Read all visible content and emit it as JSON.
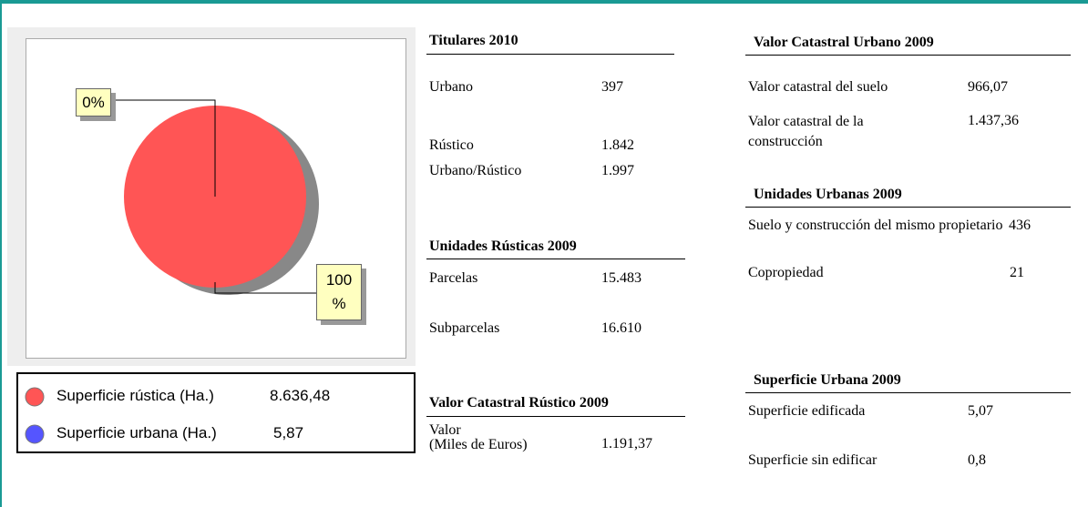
{
  "chart_data": {
    "type": "pie",
    "categories": [
      "Superficie rústica (Ha.)",
      "Superficie urbana (Ha.)"
    ],
    "values": [
      8636.48,
      5.87
    ],
    "value_labels": [
      "8.636,48",
      "5,87"
    ],
    "percent_labels": [
      "100 %",
      "0%"
    ],
    "colors": [
      "#ff5555",
      "#5555ff"
    ]
  },
  "tables": [
    {
      "title": "Titulares 2010",
      "rows": [
        [
          "Urbano",
          "397"
        ],
        [
          "Rústico",
          "1.842"
        ],
        [
          "Urbano/Rústico",
          "1.997"
        ]
      ]
    },
    {
      "title": "Unidades Rústicas 2009",
      "rows": [
        [
          "Parcelas",
          "15.483"
        ],
        [
          "Subparcelas",
          "16.610"
        ]
      ]
    },
    {
      "title": "Valor Catastral Rústico 2009",
      "rows": [
        [
          "Valor\n(Miles de Euros)",
          "1.191,37"
        ]
      ]
    },
    {
      "title": "Valor Catastral Urbano 2009",
      "rows": [
        [
          "Valor catastral del suelo",
          "966,07"
        ],
        [
          "Valor catastral de la construcción",
          "1.437,36"
        ]
      ]
    },
    {
      "title": "Unidades Urbanas 2009",
      "rows": [
        [
          "Suelo y construcción del mismo propietario",
          "436"
        ],
        [
          "Copropiedad",
          "21"
        ]
      ]
    },
    {
      "title": "Superficie Urbana 2009",
      "rows": [
        [
          "Superficie edificada",
          "5,07"
        ],
        [
          "Superficie sin edificar",
          "0,8"
        ]
      ]
    }
  ]
}
